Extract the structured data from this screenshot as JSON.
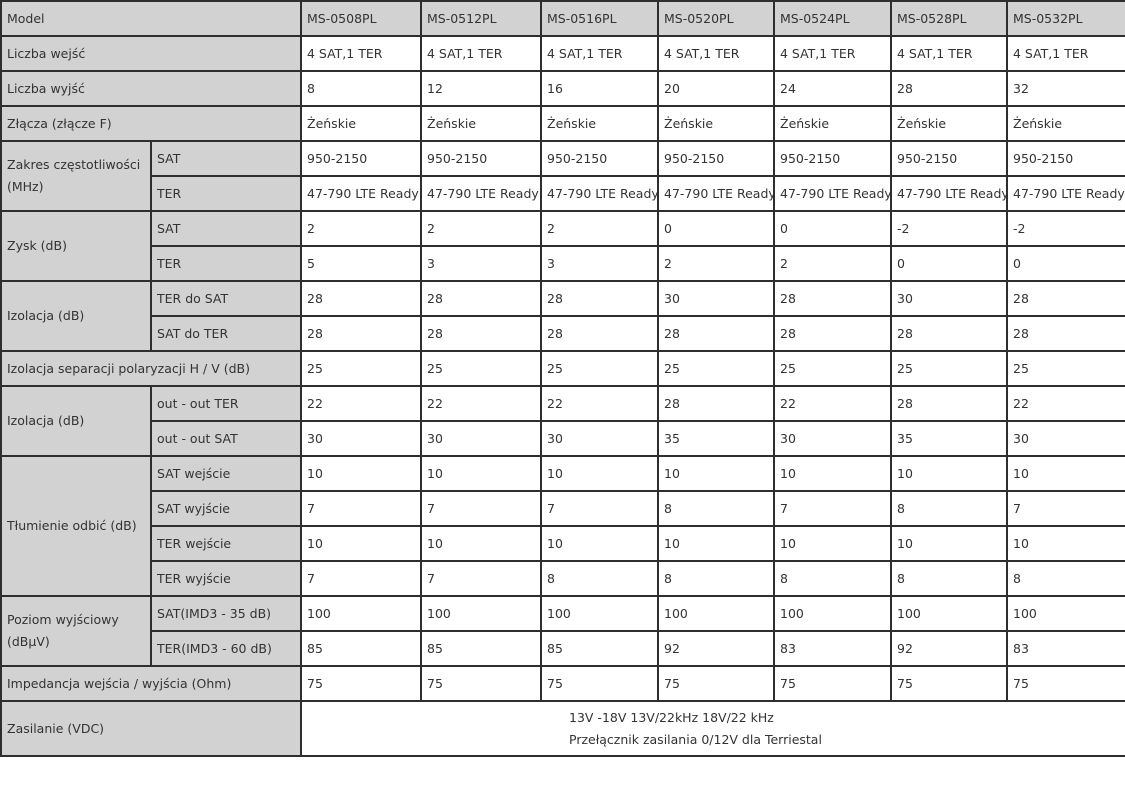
{
  "header": {
    "label": "Model",
    "models": [
      "MS-0508PL",
      "MS-0512PL",
      "MS-0516PL",
      "MS-0520PL",
      "MS-0524PL",
      "MS-0528PL",
      "MS-0532PL"
    ]
  },
  "groups": [
    {
      "label": "Liczba wejść",
      "values": [
        "4 SAT,1 TER",
        "4 SAT,1 TER",
        "4 SAT,1 TER",
        "4 SAT,1 TER",
        "4 SAT,1 TER",
        "4 SAT,1 TER",
        "4 SAT,1 TER"
      ]
    },
    {
      "label": "Liczba wyjść",
      "values": [
        "8",
        "12",
        "16",
        "20",
        "24",
        "28",
        "32"
      ]
    },
    {
      "label": "Złącza (złącze F)",
      "values": [
        "Żeńskie",
        "Żeńskie",
        "Żeńskie",
        "Żeńskie",
        "Żeńskie",
        "Żeńskie",
        "Żeńskie"
      ]
    },
    {
      "label": "Zakres częstotliwości (MHz)",
      "sub": [
        {
          "label": "SAT",
          "values": [
            "950-2150",
            "950-2150",
            "950-2150",
            "950-2150",
            "950-2150",
            "950-2150",
            "950-2150"
          ]
        },
        {
          "label": "TER",
          "values": [
            "47-790 LTE Ready",
            "47-790 LTE Ready",
            "47-790 LTE Ready",
            "47-790 LTE Ready",
            "47-790 LTE Ready",
            "47-790 LTE Ready",
            "47-790 LTE Ready"
          ]
        }
      ]
    },
    {
      "label": "Zysk (dB)",
      "sub": [
        {
          "label": "SAT",
          "values": [
            "2",
            "2",
            "2",
            "0",
            "0",
            "-2",
            "-2"
          ]
        },
        {
          "label": "TER",
          "values": [
            "5",
            "3",
            "3",
            "2",
            "2",
            "0",
            "0"
          ]
        }
      ]
    },
    {
      "label": "Izolacja (dB)",
      "sub": [
        {
          "label": "TER do SAT",
          "values": [
            "28",
            "28",
            "28",
            "30",
            "28",
            "30",
            "28"
          ]
        },
        {
          "label": "SAT do TER",
          "values": [
            "28",
            "28",
            "28",
            "28",
            "28",
            "28",
            "28"
          ]
        }
      ]
    },
    {
      "label": "Izolacja separacji polaryzacji H / V (dB)",
      "values": [
        "25",
        "25",
        "25",
        "25",
        "25",
        "25",
        "25"
      ]
    },
    {
      "label": "Izolacja (dB)",
      "sub": [
        {
          "label": "out - out TER",
          "values": [
            "22",
            "22",
            "22",
            "28",
            "22",
            "28",
            "22"
          ]
        },
        {
          "label": "out - out SAT",
          "values": [
            "30",
            "30",
            "30",
            "35",
            "30",
            "35",
            "30"
          ]
        }
      ]
    },
    {
      "label": "Tłumienie odbić (dB)",
      "sub": [
        {
          "label": "SAT wejście",
          "values": [
            "10",
            "10",
            "10",
            "10",
            "10",
            "10",
            "10"
          ]
        },
        {
          "label": "SAT wyjście",
          "values": [
            "7",
            "7",
            "7",
            "8",
            "7",
            "8",
            "7"
          ]
        },
        {
          "label": "TER wejście",
          "values": [
            "10",
            "10",
            "10",
            "10",
            "10",
            "10",
            "10"
          ]
        },
        {
          "label": "TER wyjście",
          "values": [
            "7",
            "7",
            "8",
            "8",
            "8",
            "8",
            "8"
          ]
        }
      ]
    },
    {
      "label": "Poziom wyjściowy (dBμV)",
      "sub": [
        {
          "label": "SAT(IMD3 - 35 dB)",
          "values": [
            "100",
            "100",
            "100",
            "100",
            "100",
            "100",
            "100"
          ]
        },
        {
          "label": "TER(IMD3 - 60 dB)",
          "values": [
            "85",
            "85",
            "85",
            "92",
            "83",
            "92",
            "83"
          ]
        }
      ]
    },
    {
      "label": "Impedancja wejścia / wyjścia (Ohm)",
      "values": [
        "75",
        "75",
        "75",
        "75",
        "75",
        "75",
        "75"
      ]
    }
  ],
  "power": {
    "label": "Zasilanie (VDC)",
    "lines": [
      "13V -18V 13V/22kHz 18V/22 kHz",
      "Przełącznik zasilania 0/12V dla Terriestal"
    ]
  }
}
